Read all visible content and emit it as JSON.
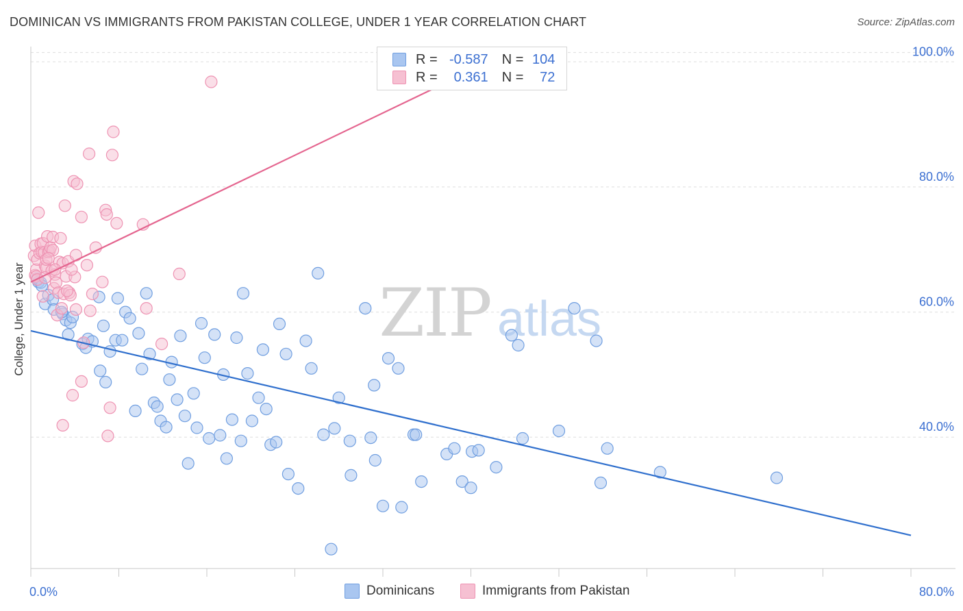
{
  "header": {
    "title": "DOMINICAN VS IMMIGRANTS FROM PAKISTAN COLLEGE, UNDER 1 YEAR CORRELATION CHART",
    "source": "Source: ZipAtlas.com"
  },
  "watermark": {
    "zip": "ZIP",
    "atlas": "atlas"
  },
  "legend": {
    "r_label": "R =",
    "n_label": "N =",
    "rows": [
      {
        "r": "-0.587",
        "n": "104",
        "color": "#7aa6e8"
      },
      {
        "r": "0.361",
        "n": "72",
        "color": "#f094b4"
      }
    ]
  },
  "colors": {
    "blue_fill": "#a9c6f0",
    "blue_stroke": "#6f9ee0",
    "blue_line": "#2f6fcd",
    "pink_fill": "#f6c0d2",
    "pink_stroke": "#ee92b2",
    "pink_line": "#e4658f",
    "tick_label": "#3b6fd1",
    "grid": "#dddddd"
  },
  "chart_data": {
    "type": "scatter",
    "title": "DOMINICAN VS IMMIGRANTS FROM PAKISTAN COLLEGE, UNDER 1 YEAR CORRELATION CHART",
    "xlabel": "",
    "ylabel": "College, Under 1 year",
    "xlim": [
      0,
      80
    ],
    "ylim": [
      19,
      102
    ],
    "x_tick_labels": [
      "0.0%",
      "80.0%"
    ],
    "y_ticks": [
      {
        "value": 40,
        "label": "40.0%"
      },
      {
        "value": 60,
        "label": "60.0%"
      },
      {
        "value": 80,
        "label": "80.0%"
      },
      {
        "value": 100,
        "label": "100.0%"
      }
    ],
    "grid": true,
    "legend_position": "bottom",
    "series": [
      {
        "name": "Dominicans",
        "color": "#7aa6e8",
        "trend": {
          "x": [
            0,
            80
          ],
          "y": [
            57.0,
            24.3
          ]
        },
        "points": [
          [
            0.6,
            65.4
          ],
          [
            0.7,
            64.8
          ],
          [
            0.9,
            64.7
          ],
          [
            1.0,
            64.2
          ],
          [
            1.3,
            61.3
          ],
          [
            1.6,
            62.7
          ],
          [
            2.0,
            62.0
          ],
          [
            2.1,
            60.4
          ],
          [
            2.9,
            59.7
          ],
          [
            3.2,
            58.7
          ],
          [
            3.4,
            56.4
          ],
          [
            3.6,
            58.3
          ],
          [
            3.8,
            59.2
          ],
          [
            4.7,
            54.9
          ],
          [
            5.0,
            54.3
          ],
          [
            5.2,
            55.7
          ],
          [
            5.6,
            55.3
          ],
          [
            6.2,
            62.4
          ],
          [
            6.3,
            50.6
          ],
          [
            6.6,
            57.8
          ],
          [
            6.8,
            48.8
          ],
          [
            7.2,
            53.7
          ],
          [
            7.7,
            55.5
          ],
          [
            7.9,
            62.2
          ],
          [
            8.3,
            55.5
          ],
          [
            8.6,
            60.0
          ],
          [
            9.0,
            59.0
          ],
          [
            9.5,
            44.2
          ],
          [
            9.8,
            56.6
          ],
          [
            10.1,
            50.9
          ],
          [
            10.5,
            63.0
          ],
          [
            10.8,
            53.3
          ],
          [
            11.2,
            45.5
          ],
          [
            11.5,
            44.9
          ],
          [
            11.8,
            42.6
          ],
          [
            12.3,
            41.6
          ],
          [
            12.6,
            49.2
          ],
          [
            12.8,
            52.0
          ],
          [
            13.3,
            46.0
          ],
          [
            13.6,
            56.2
          ],
          [
            14.0,
            43.4
          ],
          [
            14.3,
            35.8
          ],
          [
            14.8,
            47.0
          ],
          [
            15.1,
            41.5
          ],
          [
            15.5,
            58.2
          ],
          [
            15.8,
            52.7
          ],
          [
            16.2,
            39.8
          ],
          [
            16.7,
            56.4
          ],
          [
            17.2,
            40.3
          ],
          [
            17.5,
            50.0
          ],
          [
            17.8,
            36.6
          ],
          [
            18.3,
            42.8
          ],
          [
            18.7,
            55.9
          ],
          [
            19.1,
            39.4
          ],
          [
            19.3,
            63.0
          ],
          [
            19.7,
            50.2
          ],
          [
            20.1,
            42.6
          ],
          [
            20.7,
            46.3
          ],
          [
            21.1,
            54.0
          ],
          [
            21.4,
            44.5
          ],
          [
            21.8,
            38.8
          ],
          [
            22.3,
            39.2
          ],
          [
            22.6,
            58.1
          ],
          [
            23.2,
            53.3
          ],
          [
            23.4,
            34.1
          ],
          [
            24.3,
            31.8
          ],
          [
            25.0,
            55.4
          ],
          [
            25.5,
            51.0
          ],
          [
            26.1,
            66.2
          ],
          [
            26.6,
            40.4
          ],
          [
            27.3,
            22.1
          ],
          [
            27.6,
            41.4
          ],
          [
            28.0,
            46.3
          ],
          [
            29.0,
            39.4
          ],
          [
            29.1,
            33.9
          ],
          [
            30.4,
            60.6
          ],
          [
            30.9,
            39.9
          ],
          [
            31.2,
            48.3
          ],
          [
            31.3,
            36.3
          ],
          [
            32.0,
            29.0
          ],
          [
            32.5,
            52.6
          ],
          [
            33.4,
            51.0
          ],
          [
            33.7,
            28.8
          ],
          [
            34.8,
            40.4
          ],
          [
            35.0,
            40.4
          ],
          [
            35.5,
            32.9
          ],
          [
            37.8,
            37.3
          ],
          [
            38.5,
            38.2
          ],
          [
            39.2,
            32.9
          ],
          [
            40.0,
            31.9
          ],
          [
            40.1,
            37.7
          ],
          [
            40.7,
            37.9
          ],
          [
            42.3,
            35.2
          ],
          [
            43.7,
            56.3
          ],
          [
            44.3,
            54.7
          ],
          [
            44.7,
            39.8
          ],
          [
            48.0,
            41.0
          ],
          [
            49.4,
            60.6
          ],
          [
            51.4,
            55.4
          ],
          [
            51.8,
            32.7
          ],
          [
            52.4,
            38.2
          ],
          [
            57.2,
            34.4
          ],
          [
            67.8,
            33.5
          ],
          [
            2.8,
            60.0
          ]
        ]
      },
      {
        "name": "Immigrants from Pakistan",
        "color": "#f094b4",
        "trend": {
          "x": [
            0,
            40.5
          ],
          "y": [
            64.8,
            99.0
          ]
        },
        "points": [
          [
            0.3,
            69.0
          ],
          [
            0.4,
            70.6
          ],
          [
            0.4,
            65.9
          ],
          [
            0.5,
            66.8
          ],
          [
            0.5,
            65.7
          ],
          [
            0.6,
            68.4
          ],
          [
            0.7,
            75.9
          ],
          [
            0.8,
            69.4
          ],
          [
            0.9,
            70.9
          ],
          [
            1.0,
            69.6
          ],
          [
            1.1,
            71.0
          ],
          [
            1.2,
            69.5
          ],
          [
            1.3,
            67.4
          ],
          [
            1.4,
            67.0
          ],
          [
            1.4,
            68.4
          ],
          [
            1.5,
            72.1
          ],
          [
            1.6,
            69.6
          ],
          [
            1.7,
            69.8
          ],
          [
            1.8,
            70.3
          ],
          [
            1.9,
            66.6
          ],
          [
            2.0,
            69.9
          ],
          [
            2.0,
            72.0
          ],
          [
            2.1,
            63.8
          ],
          [
            2.2,
            66.0
          ],
          [
            2.3,
            64.7
          ],
          [
            2.4,
            59.5
          ],
          [
            2.5,
            63.1
          ],
          [
            2.6,
            68.0
          ],
          [
            2.7,
            71.8
          ],
          [
            2.8,
            60.6
          ],
          [
            2.9,
            67.8
          ],
          [
            3.0,
            62.9
          ],
          [
            3.1,
            77.0
          ],
          [
            3.2,
            65.7
          ],
          [
            3.4,
            68.1
          ],
          [
            3.5,
            63.1
          ],
          [
            3.6,
            62.7
          ],
          [
            3.8,
            46.7
          ],
          [
            3.9,
            80.9
          ],
          [
            4.0,
            65.6
          ],
          [
            4.1,
            60.4
          ],
          [
            4.2,
            80.5
          ],
          [
            4.6,
            75.2
          ],
          [
            4.6,
            48.9
          ],
          [
            4.8,
            55.1
          ],
          [
            5.1,
            67.5
          ],
          [
            5.3,
            85.3
          ],
          [
            5.4,
            60.2
          ],
          [
            5.6,
            62.9
          ],
          [
            5.9,
            70.3
          ],
          [
            6.5,
            64.8
          ],
          [
            6.8,
            76.3
          ],
          [
            6.9,
            75.6
          ],
          [
            7.0,
            40.2
          ],
          [
            7.2,
            44.7
          ],
          [
            7.4,
            85.1
          ],
          [
            7.5,
            88.8
          ],
          [
            7.8,
            74.2
          ],
          [
            10.2,
            74.0
          ],
          [
            10.5,
            60.6
          ],
          [
            11.9,
            54.9
          ],
          [
            13.5,
            66.1
          ],
          [
            16.4,
            96.8
          ],
          [
            3.3,
            63.4
          ],
          [
            1.1,
            62.5
          ],
          [
            2.9,
            41.9
          ],
          [
            0.6,
            65.2
          ],
          [
            1.6,
            68.6
          ],
          [
            2.2,
            66.8
          ],
          [
            3.7,
            66.8
          ],
          [
            4.1,
            69.1
          ],
          [
            1.3,
            65.5
          ]
        ]
      }
    ]
  }
}
